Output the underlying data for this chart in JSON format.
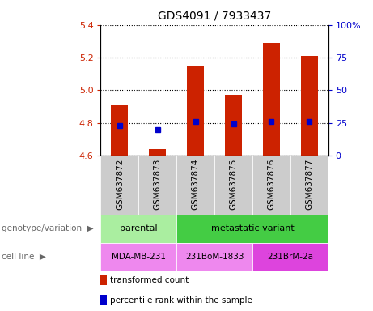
{
  "title": "GDS4091 / 7933437",
  "samples": [
    "GSM637872",
    "GSM637873",
    "GSM637874",
    "GSM637875",
    "GSM637876",
    "GSM637877"
  ],
  "transformed_counts": [
    4.91,
    4.64,
    5.15,
    4.97,
    5.29,
    5.21
  ],
  "percentile_ranks": [
    23,
    20,
    26,
    24,
    26,
    26
  ],
  "ylim_left": [
    4.6,
    5.4
  ],
  "ylim_right": [
    0,
    100
  ],
  "yticks_left": [
    4.6,
    4.8,
    5.0,
    5.2,
    5.4
  ],
  "yticks_right": [
    0,
    25,
    50,
    75,
    100
  ],
  "ytick_right_labels": [
    "0",
    "25",
    "50",
    "75",
    "100%"
  ],
  "bar_color": "#cc2200",
  "dot_color": "#0000cc",
  "bar_width": 0.45,
  "bar_bottom": 4.6,
  "genotype_groups": [
    {
      "label": "parental",
      "start": 0,
      "end": 2,
      "color": "#aaeea0"
    },
    {
      "label": "metastatic variant",
      "start": 2,
      "end": 6,
      "color": "#44cc44"
    }
  ],
  "cell_lines": [
    {
      "label": "MDA-MB-231",
      "start": 0,
      "end": 2,
      "color": "#ee88ee"
    },
    {
      "label": "231BoM-1833",
      "start": 2,
      "end": 4,
      "color": "#ee88ee"
    },
    {
      "label": "231BrM-2a",
      "start": 4,
      "end": 6,
      "color": "#dd44dd"
    }
  ],
  "legend_items": [
    {
      "label": "transformed count",
      "color": "#cc2200"
    },
    {
      "label": "percentile rank within the sample",
      "color": "#0000cc"
    }
  ],
  "genotype_label": "genotype/variation",
  "cellline_label": "cell line",
  "tick_color_left": "#cc2200",
  "tick_color_right": "#0000cc",
  "sample_band_color": "#cccccc",
  "grid_linestyle": "dotted",
  "grid_linewidth": 0.8
}
